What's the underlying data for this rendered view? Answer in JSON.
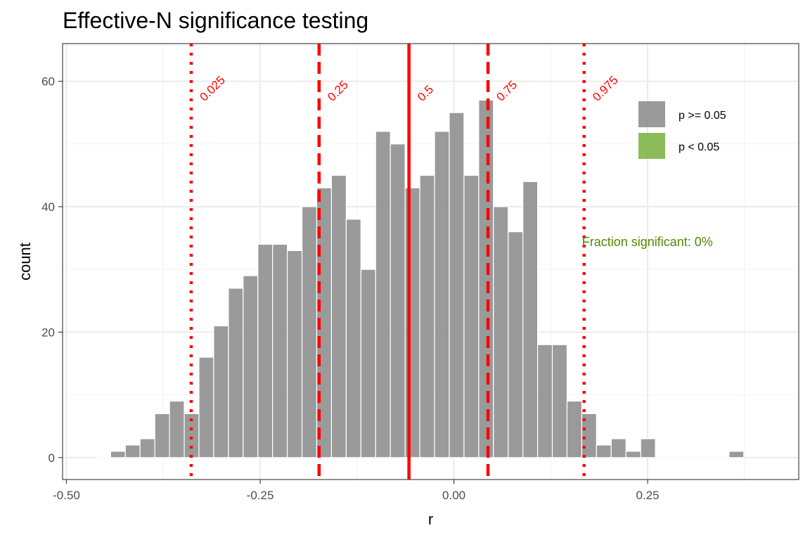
{
  "chart_data": {
    "type": "bar",
    "title": "Effective-N significance testing",
    "xlabel": "r",
    "ylabel": "count",
    "xlim": [
      -0.505,
      0.445
    ],
    "ylim": [
      -3.5,
      66
    ],
    "x_ticks": [
      {
        "value": -0.5,
        "label": "-0.50"
      },
      {
        "value": -0.25,
        "label": "-0.25"
      },
      {
        "value": 0.0,
        "label": "0.00"
      },
      {
        "value": 0.25,
        "label": "0.25"
      }
    ],
    "y_ticks": [
      {
        "value": 0,
        "label": "0"
      },
      {
        "value": 20,
        "label": "20"
      },
      {
        "value": 40,
        "label": "40"
      },
      {
        "value": 60,
        "label": "60"
      }
    ],
    "bin_width": 0.019,
    "series": [
      {
        "name": "p >= 0.05",
        "color": "#8c8c8c",
        "x": [
          -0.4525,
          -0.4335,
          -0.4145,
          -0.3955,
          -0.3765,
          -0.3575,
          -0.3385,
          -0.3195,
          -0.3005,
          -0.2815,
          -0.2625,
          -0.2435,
          -0.2245,
          -0.2055,
          -0.1865,
          -0.1675,
          -0.1485,
          -0.1295,
          -0.1105,
          -0.0915,
          -0.0725,
          -0.0535,
          -0.0345,
          -0.0155,
          0.0035,
          0.0225,
          0.0415,
          0.0605,
          0.0795,
          0.0985,
          0.1175,
          0.1365,
          0.1555,
          0.1745,
          0.1935,
          0.2125,
          0.2315,
          0.2505,
          0.2695,
          0.2885,
          0.3075,
          0.3265,
          0.3455,
          0.3645
        ],
        "values": [
          0,
          1,
          2,
          3,
          7,
          9,
          7,
          16,
          21,
          27,
          29,
          34,
          34,
          33,
          40,
          43,
          45,
          38,
          30,
          52,
          50,
          43,
          45,
          52,
          55,
          45,
          57,
          40,
          36,
          44,
          18,
          18,
          9,
          7,
          2,
          3,
          1,
          3,
          0,
          0,
          0,
          0,
          0,
          1
        ]
      },
      {
        "name": "p < 0.05",
        "color": "#7cb342",
        "x": [],
        "values": []
      }
    ],
    "quantile_lines": [
      {
        "label": "0.025",
        "x": -0.339,
        "style": "dotted"
      },
      {
        "label": "0.25",
        "x": -0.174,
        "style": "dashed"
      },
      {
        "label": "0.5",
        "x": -0.058,
        "style": "solid"
      },
      {
        "label": "0.75",
        "x": 0.044,
        "style": "dashed"
      },
      {
        "label": "0.975",
        "x": 0.168,
        "style": "dotted"
      }
    ],
    "quantile_label_y": 58.5,
    "annotation": {
      "text": "Fraction significant: 0%",
      "x": 0.168,
      "y": 34.5,
      "color": "#4d8a00"
    },
    "legend": {
      "position": "top-right",
      "entries": [
        "p >= 0.05",
        "p < 0.05"
      ]
    },
    "grid": true,
    "line_color": "#ff0000"
  }
}
